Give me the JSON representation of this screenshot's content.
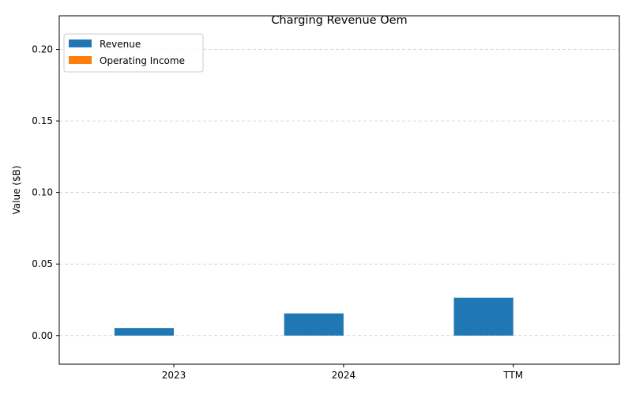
{
  "chart_data": {
    "type": "bar",
    "title": "Charging Revenue Oem",
    "xlabel": "",
    "ylabel": "Value ($B)",
    "categories": [
      "2023",
      "2024",
      "TTM"
    ],
    "series": [
      {
        "name": "Revenue",
        "values": [
          0.0053,
          0.0155,
          0.0265
        ],
        "color": "#1f77b4"
      },
      {
        "name": "Operating Income",
        "values": [
          0,
          0,
          0
        ],
        "color": "#ff7f0e"
      }
    ],
    "ylim": [
      -0.02,
      0.2235
    ],
    "yticks": [
      0.0,
      0.05,
      0.1,
      0.15,
      0.2
    ],
    "ytick_labels": [
      "0.00",
      "0.05",
      "0.10",
      "0.15",
      "0.20"
    ],
    "grid": "y-dashed",
    "legend_position": "upper-left"
  }
}
